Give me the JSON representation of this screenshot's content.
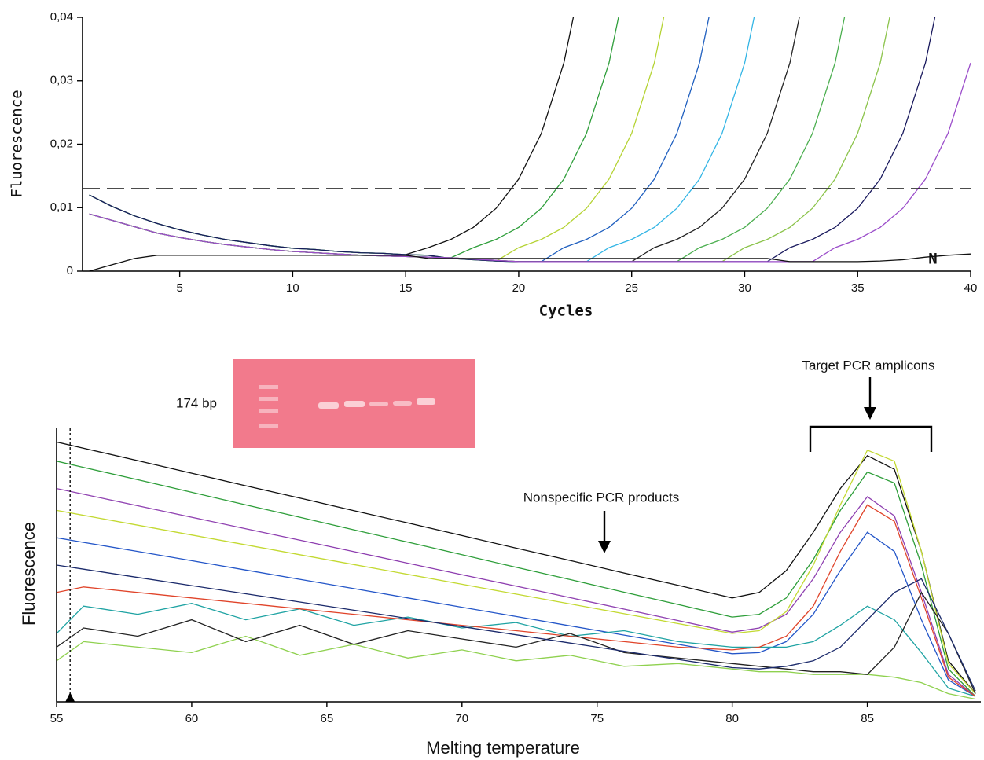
{
  "chart_data": [
    {
      "type": "line",
      "ylabel": "Fluorescence",
      "xlabel": "Cycles",
      "annotation": "N",
      "xlim": [
        0.7,
        40
      ],
      "xticks": [
        5,
        10,
        15,
        20,
        25,
        30,
        35,
        40
      ],
      "ylim": [
        0,
        0.04
      ],
      "yticks": [
        0,
        {
          "value": 0.01,
          "label": "0,01"
        },
        {
          "value": 0.02,
          "label": "0,02"
        },
        {
          "value": 0.03,
          "label": "0,03"
        },
        {
          "value": 0.04,
          "label": "0,04"
        }
      ],
      "threshold": 0.013,
      "x": [
        1,
        2,
        3,
        4,
        5,
        6,
        7,
        8,
        9,
        10,
        11,
        12,
        13,
        14,
        15,
        16,
        17,
        18,
        19,
        20,
        21,
        22,
        23,
        24,
        25,
        26,
        27,
        28,
        29,
        30,
        31,
        32,
        33,
        34,
        35,
        36,
        37,
        38,
        39,
        40
      ],
      "series": [
        {
          "color": "#111111",
          "values": [
            0.012,
            0.0102,
            0.0087,
            0.0075,
            0.0065,
            0.0057,
            0.005,
            0.0045,
            0.004,
            0.0036,
            0.0034,
            0.0031,
            0.0029,
            0.0028,
            0.0026,
            0.0037,
            0.005,
            0.0069,
            0.0099,
            0.0145,
            0.0217,
            0.0328,
            0.05,
            null,
            null,
            null,
            null,
            null,
            null,
            null,
            null,
            null,
            null,
            null,
            null,
            null,
            null,
            null,
            null,
            null
          ]
        },
        {
          "color": "#2e9e3a",
          "values": [
            0.009,
            0.008,
            0.007,
            0.006,
            0.0053,
            0.0047,
            0.0042,
            0.0038,
            0.0034,
            0.0031,
            0.0029,
            0.0027,
            0.0025,
            0.0024,
            0.0023,
            0.0022,
            0.0021,
            0.0037,
            0.005,
            0.0069,
            0.0099,
            0.0145,
            0.0217,
            0.0328,
            0.05,
            null,
            null,
            null,
            null,
            null,
            null,
            null,
            null,
            null,
            null,
            null,
            null,
            null,
            null,
            null
          ]
        },
        {
          "color": "#b5d334",
          "values": [
            0.012,
            0.0102,
            0.0087,
            0.0075,
            0.0065,
            0.0057,
            0.005,
            0.0045,
            0.004,
            0.0036,
            0.0034,
            0.0031,
            0.0029,
            0.0028,
            0.0026,
            0.0025,
            0.002,
            0.0018,
            0.0016,
            0.0037,
            0.005,
            0.0069,
            0.0099,
            0.0145,
            0.0217,
            0.0328,
            0.05,
            null,
            null,
            null,
            null,
            null,
            null,
            null,
            null,
            null,
            null,
            null,
            null,
            null
          ]
        },
        {
          "color": "#1f5fbf",
          "values": [
            0.009,
            0.008,
            0.007,
            0.006,
            0.0053,
            0.0047,
            0.0042,
            0.0038,
            0.0034,
            0.0031,
            0.0029,
            0.0027,
            0.0025,
            0.0024,
            0.0023,
            0.0022,
            0.0021,
            0.0019,
            0.0017,
            0.0015,
            0.0015,
            0.0037,
            0.005,
            0.0069,
            0.0099,
            0.0145,
            0.0217,
            0.0328,
            0.05,
            null,
            null,
            null,
            null,
            null,
            null,
            null,
            null,
            null,
            null,
            null
          ]
        },
        {
          "color": "#33b5e5",
          "values": [
            0.012,
            0.0102,
            0.0087,
            0.0075,
            0.0065,
            0.0057,
            0.005,
            0.0045,
            0.004,
            0.0036,
            0.0034,
            0.0031,
            0.0029,
            0.0028,
            0.0026,
            0.0025,
            0.002,
            0.0018,
            0.0016,
            0.0015,
            0.0015,
            0.0015,
            0.0015,
            0.0037,
            0.005,
            0.0069,
            0.0099,
            0.0145,
            0.0217,
            0.0328,
            0.05,
            null,
            null,
            null,
            null,
            null,
            null,
            null,
            null,
            null
          ]
        },
        {
          "color": "#222222",
          "values": [
            0.009,
            0.008,
            0.007,
            0.006,
            0.0053,
            0.0047,
            0.0042,
            0.0038,
            0.0034,
            0.0031,
            0.0029,
            0.0027,
            0.0025,
            0.0024,
            0.0023,
            0.0022,
            0.0021,
            0.0019,
            0.0017,
            0.0015,
            0.0015,
            0.0015,
            0.0015,
            0.0015,
            0.0015,
            0.0037,
            0.005,
            0.0069,
            0.0099,
            0.0145,
            0.0217,
            0.0328,
            0.05,
            null,
            null,
            null,
            null,
            null,
            null,
            null
          ]
        },
        {
          "color": "#4caf50",
          "values": [
            0.012,
            0.0102,
            0.0087,
            0.0075,
            0.0065,
            0.0057,
            0.005,
            0.0045,
            0.004,
            0.0036,
            0.0034,
            0.0031,
            0.0029,
            0.0028,
            0.0026,
            0.0025,
            0.002,
            0.0018,
            0.0016,
            0.0015,
            0.0015,
            0.0015,
            0.0015,
            0.0015,
            0.0015,
            0.0015,
            0.0015,
            0.0037,
            0.005,
            0.0069,
            0.0099,
            0.0145,
            0.0217,
            0.0328,
            0.05,
            null,
            null,
            null,
            null,
            null
          ]
        },
        {
          "color": "#8bc34a",
          "values": [
            0.009,
            0.008,
            0.007,
            0.006,
            0.0053,
            0.0047,
            0.0042,
            0.0038,
            0.0034,
            0.0031,
            0.0029,
            0.0027,
            0.0025,
            0.0024,
            0.0023,
            0.0022,
            0.0021,
            0.0019,
            0.0017,
            0.0015,
            0.0015,
            0.0015,
            0.0015,
            0.0015,
            0.0015,
            0.0015,
            0.0015,
            0.0015,
            0.0015,
            0.0037,
            0.005,
            0.0069,
            0.0099,
            0.0145,
            0.0217,
            0.0328,
            0.05,
            null,
            null,
            null
          ]
        },
        {
          "color": "#1a1a5e",
          "values": [
            0.012,
            0.0102,
            0.0087,
            0.0075,
            0.0065,
            0.0057,
            0.005,
            0.0045,
            0.004,
            0.0036,
            0.0034,
            0.0031,
            0.0029,
            0.0028,
            0.0026,
            0.0025,
            0.002,
            0.0018,
            0.0016,
            0.0015,
            0.0015,
            0.0015,
            0.0015,
            0.0015,
            0.0015,
            0.0015,
            0.0015,
            0.0015,
            0.0015,
            0.0015,
            0.0015,
            0.0037,
            0.005,
            0.0069,
            0.0099,
            0.0145,
            0.0217,
            0.0328,
            0.05,
            null
          ]
        },
        {
          "color": "#9b4dca",
          "values": [
            0.009,
            0.008,
            0.007,
            0.006,
            0.0053,
            0.0047,
            0.0042,
            0.0038,
            0.0034,
            0.0031,
            0.0029,
            0.0027,
            0.0025,
            0.0024,
            0.0023,
            0.0022,
            0.0021,
            0.0019,
            0.0017,
            0.0015,
            0.0015,
            0.0015,
            0.0015,
            0.0015,
            0.0015,
            0.0015,
            0.0015,
            0.0015,
            0.0015,
            0.0015,
            0.0015,
            0.0015,
            0.0015,
            0.0037,
            0.005,
            0.0069,
            0.0099,
            0.0145,
            0.0217,
            0.0328
          ]
        },
        {
          "color": "#111111",
          "values": [
            0,
            0.001,
            0.002,
            0.0025,
            0.0025,
            0.0025,
            0.0025,
            0.0025,
            0.0025,
            0.0025,
            0.0025,
            0.0025,
            0.0025,
            0.0025,
            0.0025,
            0.002,
            0.002,
            0.002,
            0.002,
            0.002,
            0.002,
            0.002,
            0.002,
            0.002,
            0.002,
            0.002,
            0.002,
            0.002,
            0.002,
            0.002,
            0.002,
            0.0015,
            0.0015,
            0.0015,
            0.0015,
            0.0016,
            0.0018,
            0.0022,
            0.0025,
            0.0027
          ]
        }
      ]
    },
    {
      "type": "line",
      "ylabel": "Fluorescence",
      "xlabel": "Melting temperature",
      "annotations": [
        "174 bp",
        "Nonspecific PCR products",
        "Target PCR amplicons"
      ],
      "xlim": [
        55,
        89.2
      ],
      "xticks": [
        55,
        60,
        65,
        70,
        75,
        80,
        85
      ],
      "ylim": [
        0,
        100
      ],
      "marker_x": 55.5,
      "x": [
        55,
        56,
        58,
        60,
        62,
        64,
        66,
        68,
        70,
        72,
        74,
        76,
        78,
        80,
        81,
        82,
        83,
        84,
        85,
        86,
        87,
        88,
        89
      ],
      "series": [
        {
          "color": "#111111",
          "values": [
            95,
            92.7,
            88.2,
            83.6,
            79,
            74.5,
            69.9,
            65.4,
            60.8,
            56.2,
            51.7,
            47.1,
            42.6,
            38,
            40,
            48,
            62,
            78,
            90,
            85,
            55,
            15,
            3
          ]
        },
        {
          "color": "#2e9e3a",
          "values": [
            88,
            85.7,
            81.2,
            76.6,
            72,
            67.5,
            62.9,
            58.4,
            53.8,
            49.2,
            44.7,
            40.1,
            35.6,
            31,
            32,
            38,
            52,
            70,
            84,
            80,
            50,
            12,
            2
          ]
        },
        {
          "color": "#8e3fb0",
          "values": [
            78,
            75.9,
            71.7,
            67.5,
            63.3,
            59.1,
            54.9,
            50.7,
            46.5,
            42.3,
            38.1,
            33.9,
            29.7,
            25.5,
            27,
            32,
            45,
            62,
            75,
            68,
            40,
            10,
            2
          ]
        },
        {
          "color": "#2456c8",
          "values": [
            60,
            58.3,
            55,
            51.6,
            48.2,
            44.8,
            41.4,
            38,
            34.6,
            31.2,
            27.8,
            24.4,
            21,
            17.6,
            18,
            22,
            32,
            48,
            62,
            55,
            30,
            8,
            2
          ]
        },
        {
          "color": "#1fa3a3",
          "values": [
            25,
            35,
            32,
            36,
            30,
            34,
            28,
            31,
            27,
            29,
            24,
            26,
            22,
            20,
            20,
            20,
            22,
            28,
            35,
            30,
            18,
            5,
            2
          ]
        },
        {
          "color": "#8fd14f",
          "values": [
            15,
            22,
            20,
            18,
            24,
            17,
            21,
            16,
            19,
            15,
            17,
            13,
            14,
            12,
            11,
            11,
            10,
            10,
            10,
            9,
            7,
            3,
            1
          ]
        },
        {
          "color": "#e0442a",
          "values": [
            40,
            42,
            40,
            38,
            36,
            34,
            32,
            30,
            28,
            26,
            24,
            22,
            20,
            19,
            20,
            24,
            35,
            55,
            72,
            66,
            38,
            9,
            2
          ]
        },
        {
          "color": "#c3d932",
          "values": [
            70,
            68.2,
            64.6,
            61,
            57.4,
            53.8,
            50.2,
            46.6,
            43,
            39.4,
            35.8,
            32.2,
            28.6,
            25,
            26,
            33,
            50,
            72,
            92,
            88,
            55,
            14,
            3
          ]
        },
        {
          "color": "#222222",
          "values": [
            20,
            27,
            24,
            30,
            22,
            28,
            21,
            26,
            23,
            20,
            25,
            18,
            16,
            14,
            13,
            12,
            11,
            11,
            10,
            20,
            40,
            25,
            3
          ]
        },
        {
          "color": "#1b2a6b",
          "values": [
            50,
            48.5,
            45.5,
            42.5,
            39.5,
            36.5,
            33.5,
            30.5,
            27.5,
            24.5,
            21.5,
            18.5,
            15.5,
            12.5,
            12,
            13,
            15,
            20,
            30,
            40,
            45,
            25,
            4
          ]
        }
      ]
    }
  ]
}
